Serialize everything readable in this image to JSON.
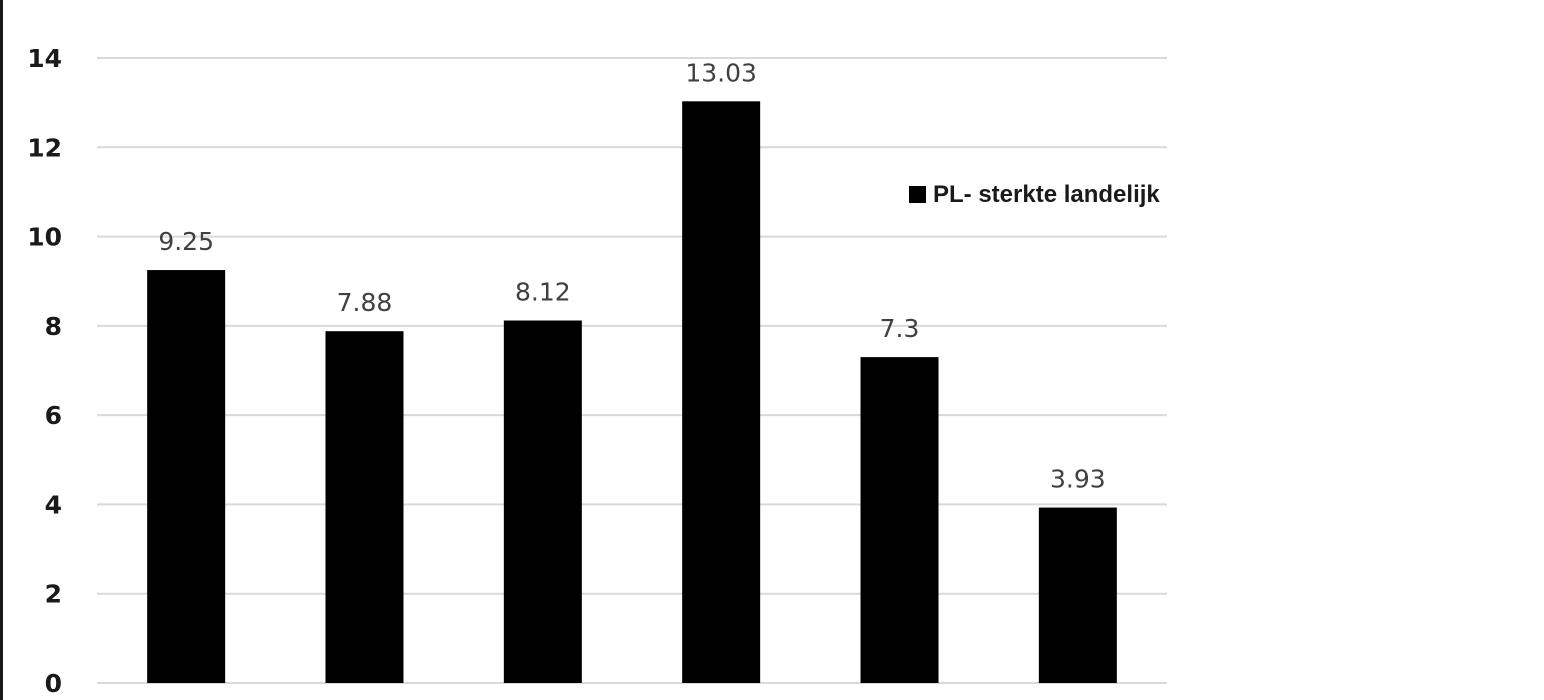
{
  "chart_data": {
    "type": "bar",
    "title": "",
    "xlabel": "",
    "ylabel": "",
    "categories": [
      "",
      "",
      "",
      "",
      "",
      ""
    ],
    "series": [
      {
        "name": "PL- sterkte landelijk",
        "values": [
          9.25,
          7.88,
          8.12,
          13.03,
          7.3,
          3.93
        ],
        "data_labels": [
          "9.25",
          "7.88",
          "8.12",
          "13.03",
          "7.3",
          "3.93"
        ],
        "color": "#000000"
      }
    ],
    "ylim": [
      0,
      14
    ],
    "yticks": [
      0,
      2,
      4,
      6,
      8,
      10,
      12,
      14
    ],
    "ytick_labels": [
      "0",
      "2",
      "4",
      "6",
      "8",
      "10",
      "12",
      "14"
    ],
    "grid": true,
    "grid_color": "#d9d9d9",
    "legend": {
      "placement": "right",
      "entries": [
        "PL- sterkte landelijk"
      ]
    }
  }
}
